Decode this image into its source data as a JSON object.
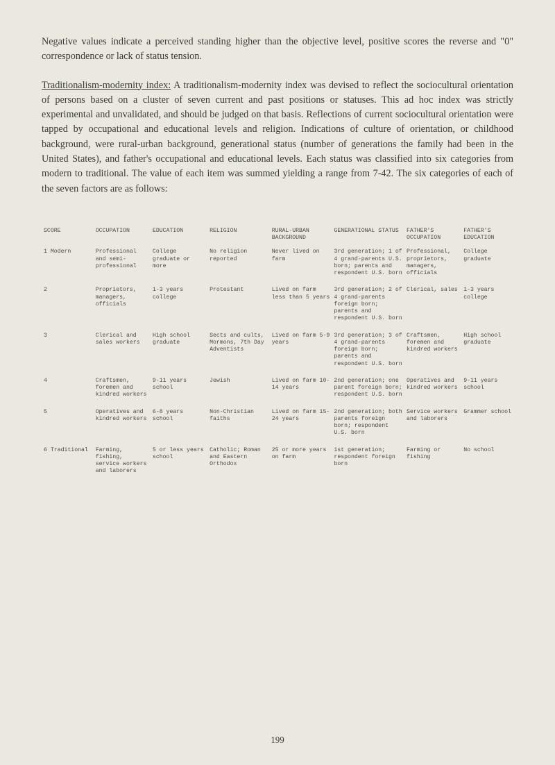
{
  "paragraphs": {
    "p1": "Negative values indicate a perceived standing higher than the objective level, positive scores the reverse and \"0\" correspondence or lack of status tension.",
    "p2_lead": "Traditionalism-modernity index:",
    "p2_rest": " A traditionalism-modernity index was devised to reflect the sociocultural orientation of persons based on a cluster of seven current and past positions or statuses. This ad hoc index was strictly experimental and unvalidated, and should be judged on that basis. Reflections of current sociocultural orientation were tapped by occupational and educational levels and religion. Indications of culture of orientation, or childhood background, were rural-urban background, generational status (number of generations the family had been in the United States), and father's occupational and educational levels. Each status was classified into six categories from modern to traditional. The value of each item was summed yielding a range from 7-42. The six categories of each of the seven factors are as follows:"
  },
  "table": {
    "headers": {
      "score": "SCORE",
      "occupation": "OCCUPATION",
      "education": "EDUCATION",
      "religion": "RELIGION",
      "rural": "RURAL-URBAN BACKGROUND",
      "gen": "GENERATIONAL STATUS",
      "father_occ": "FATHER'S OCCUPATION",
      "father_edu": "FATHER'S EDUCATION"
    },
    "rows": [
      {
        "score": "1 Modern",
        "occupation": "Professional and semi-professional",
        "education": "College graduate or more",
        "religion": "No religion reported",
        "rural": "Never lived on farm",
        "gen": "3rd generation; 1 of 4 grand-parents U.S. born; parents and respondent U.S. born",
        "father_occ": "Professional, proprietors, managers, officials",
        "father_edu": "College graduate"
      },
      {
        "score": "2",
        "occupation": "Proprietors, managers, officials",
        "education": "1-3 years college",
        "religion": "Protestant",
        "rural": "Lived on farm less than 5 years",
        "gen": "3rd generation; 2 of 4 grand-parents foreign born; parents and respondent U.S. born",
        "father_occ": "Clerical, sales",
        "father_edu": "1-3 years college"
      },
      {
        "score": "3",
        "occupation": "Clerical and sales workers",
        "education": "High school graduate",
        "religion": "Sects and cults, Mormons, 7th Day Adventists",
        "rural": "Lived on farm 5-9 years",
        "gen": "3rd generation; 3 of 4 grand-parents foreign born; parents and respondent U.S. born",
        "father_occ": "Craftsmen, foremen and kindred workers",
        "father_edu": "High school graduate"
      },
      {
        "score": "4",
        "occupation": "Craftsmen, foremen and kindred workers",
        "education": "9-11 years school",
        "religion": "Jewish",
        "rural": "Lived on farm 10-14 years",
        "gen": "2nd generation; one parent foreign born; respondent U.S. born",
        "father_occ": "Operatives and kindred workers",
        "father_edu": "9-11 years school"
      },
      {
        "score": "5",
        "occupation": "Operatives and kindred workers",
        "education": "6-8 years school",
        "religion": "Non-Christian faiths",
        "rural": "Lived on farm 15-24 years",
        "gen": "2nd generation; both parents foreign born; respondent U.S. born",
        "father_occ": "Service workers and laborers",
        "father_edu": "Grammer school"
      },
      {
        "score": "6 Traditional",
        "occupation": "Farming, fishing, service workers and laborers",
        "education": "5 or less years school",
        "religion": "Catholic; Roman and Eastern Orthodox",
        "rural": "25 or more years on farm",
        "gen": "1st generation; respondent foreign born",
        "father_occ": "Farming or fishing",
        "father_edu": "No school"
      }
    ]
  },
  "page_number": "199",
  "colors": {
    "background": "#ebe8df",
    "text": "#3a3a38",
    "table_text": "#4a4a46"
  }
}
